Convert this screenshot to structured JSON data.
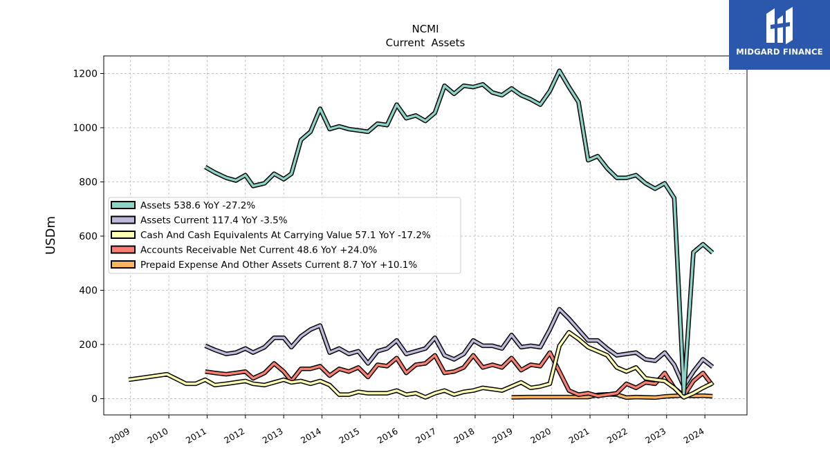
{
  "brand": {
    "name": "MIDGARD FINANCE",
    "logo_icon": "midgard-monogram-icon",
    "color": "#2b58ad"
  },
  "chart_data": {
    "type": "line",
    "title": "NCMI",
    "subtitle": "Current  Assets",
    "xlabel": "",
    "ylabel": "USDm",
    "xlim": [
      2008.3,
      2025.1
    ],
    "ylim": [
      -60,
      1265
    ],
    "yticks": [
      0,
      200,
      400,
      600,
      800,
      1000,
      1200
    ],
    "xticks": [
      "2009",
      "2010",
      "2011",
      "2012",
      "2013",
      "2014",
      "2015",
      "2016",
      "2017",
      "2018",
      "2019",
      "2020",
      "2021",
      "2022",
      "2023",
      "2024"
    ],
    "grid": true,
    "legend": "center-left",
    "series": [
      {
        "name": "Assets  538.6 YoY -27.2%",
        "color": "#8dd3c7",
        "x": [
          2010.95,
          2011.2,
          2011.5,
          2011.75,
          2012.0,
          2012.2,
          2012.5,
          2012.75,
          2013.0,
          2013.2,
          2013.45,
          2013.7,
          2013.95,
          2014.2,
          2014.45,
          2014.7,
          2014.95,
          2015.2,
          2015.45,
          2015.7,
          2015.95,
          2016.2,
          2016.45,
          2016.7,
          2016.95,
          2017.2,
          2017.45,
          2017.7,
          2017.95,
          2018.2,
          2018.45,
          2018.7,
          2018.95,
          2019.2,
          2019.45,
          2019.7,
          2019.95,
          2020.2,
          2020.45,
          2020.7,
          2020.95,
          2021.2,
          2021.45,
          2021.7,
          2021.95,
          2022.2,
          2022.45,
          2022.7,
          2022.95,
          2023.2,
          2023.45,
          2023.7,
          2023.95,
          2024.2
        ],
        "values": [
          855,
          835,
          815,
          805,
          825,
          785,
          795,
          830,
          810,
          830,
          955,
          985,
          1070,
          995,
          1005,
          995,
          990,
          985,
          1015,
          1010,
          1085,
          1035,
          1045,
          1025,
          1055,
          1155,
          1125,
          1155,
          1150,
          1160,
          1130,
          1120,
          1145,
          1120,
          1105,
          1085,
          1135,
          1210,
          1150,
          1095,
          880,
          895,
          850,
          815,
          815,
          825,
          795,
          775,
          795,
          740,
          20,
          540,
          570,
          538.6
        ]
      },
      {
        "name": "Assets Current  117.4 YoY -3.5%",
        "color": "#bebada",
        "x": [
          2010.95,
          2011.2,
          2011.5,
          2011.75,
          2012.0,
          2012.2,
          2012.5,
          2012.75,
          2013.0,
          2013.2,
          2013.45,
          2013.7,
          2013.95,
          2014.2,
          2014.45,
          2014.7,
          2014.95,
          2015.2,
          2015.45,
          2015.7,
          2015.95,
          2016.2,
          2016.45,
          2016.7,
          2016.95,
          2017.2,
          2017.45,
          2017.7,
          2017.95,
          2018.2,
          2018.45,
          2018.7,
          2018.95,
          2019.2,
          2019.45,
          2019.7,
          2019.95,
          2020.2,
          2020.45,
          2020.7,
          2020.95,
          2021.2,
          2021.45,
          2021.7,
          2021.95,
          2022.2,
          2022.45,
          2022.7,
          2022.95,
          2023.2,
          2023.45,
          2023.7,
          2023.95,
          2024.2
        ],
        "values": [
          195,
          180,
          165,
          170,
          185,
          170,
          190,
          225,
          225,
          190,
          230,
          255,
          270,
          170,
          185,
          165,
          175,
          130,
          175,
          185,
          215,
          165,
          175,
          185,
          225,
          160,
          145,
          165,
          215,
          195,
          195,
          185,
          235,
          190,
          195,
          190,
          255,
          330,
          295,
          255,
          215,
          215,
          185,
          160,
          165,
          170,
          145,
          140,
          170,
          125,
          45,
          100,
          145,
          117.4
        ]
      },
      {
        "name": "Cash And Cash Equivalents At Carrying Value  57.1 YoY -17.2%",
        "color": "#ffffb3",
        "x": [
          2008.95,
          2009.45,
          2009.95,
          2010.45,
          2010.7,
          2010.95,
          2011.2,
          2011.5,
          2011.75,
          2012.0,
          2012.2,
          2012.5,
          2012.75,
          2013.0,
          2013.2,
          2013.45,
          2013.7,
          2013.95,
          2014.2,
          2014.45,
          2014.7,
          2014.95,
          2015.2,
          2015.45,
          2015.7,
          2015.95,
          2016.2,
          2016.45,
          2016.7,
          2016.95,
          2017.2,
          2017.45,
          2017.7,
          2017.95,
          2018.2,
          2018.45,
          2018.7,
          2018.95,
          2019.2,
          2019.45,
          2019.7,
          2019.95,
          2020.2,
          2020.45,
          2020.7,
          2020.95,
          2021.2,
          2021.45,
          2021.7,
          2021.95,
          2022.2,
          2022.45,
          2022.7,
          2022.95,
          2023.2,
          2023.45,
          2023.7,
          2023.95,
          2024.2
        ],
        "values": [
          70,
          80,
          90,
          55,
          55,
          70,
          50,
          55,
          60,
          65,
          55,
          50,
          60,
          70,
          60,
          65,
          55,
          65,
          50,
          15,
          15,
          25,
          20,
          20,
          20,
          30,
          15,
          20,
          5,
          20,
          30,
          15,
          25,
          30,
          40,
          35,
          30,
          45,
          60,
          40,
          45,
          55,
          195,
          245,
          220,
          190,
          175,
          160,
          115,
          100,
          115,
          75,
          70,
          65,
          40,
          5,
          20,
          40,
          57.1
        ]
      },
      {
        "name": "Accounts Receivable Net Current  48.6 YoY +24.0%",
        "color": "#fb8072",
        "x": [
          2010.95,
          2011.2,
          2011.5,
          2011.75,
          2012.0,
          2012.2,
          2012.5,
          2012.75,
          2013.0,
          2013.2,
          2013.45,
          2013.7,
          2013.95,
          2014.2,
          2014.45,
          2014.7,
          2014.95,
          2015.2,
          2015.45,
          2015.7,
          2015.95,
          2016.2,
          2016.45,
          2016.7,
          2016.95,
          2017.2,
          2017.45,
          2017.7,
          2017.95,
          2018.2,
          2018.45,
          2018.7,
          2018.95,
          2019.2,
          2019.45,
          2019.7,
          2019.95,
          2020.2,
          2020.45,
          2020.7,
          2020.95,
          2021.2,
          2021.45,
          2021.7,
          2021.95,
          2022.2,
          2022.45,
          2022.7,
          2022.95,
          2023.2,
          2023.45,
          2023.7,
          2023.95,
          2024.2
        ],
        "values": [
          100,
          95,
          90,
          95,
          100,
          75,
          95,
          130,
          100,
          65,
          110,
          110,
          120,
          85,
          110,
          100,
          115,
          80,
          125,
          120,
          150,
          95,
          125,
          130,
          160,
          95,
          100,
          115,
          160,
          115,
          125,
          115,
          150,
          105,
          125,
          120,
          170,
          100,
          30,
          15,
          20,
          10,
          15,
          20,
          55,
          40,
          60,
          55,
          95,
          40,
          10,
          65,
          95,
          48.6
        ]
      },
      {
        "name": "Prepaid Expense And Other Assets Current  8.7 YoY +10.1%",
        "color": "#fdb462",
        "x": [
          2018.95,
          2019.45,
          2019.95,
          2020.45,
          2020.95,
          2021.2,
          2021.45,
          2021.7,
          2021.95,
          2022.2,
          2022.45,
          2022.7,
          2022.95,
          2023.2,
          2023.45,
          2023.7,
          2023.95,
          2024.2
        ],
        "values": [
          5,
          6,
          6,
          6,
          6,
          14,
          16,
          15,
          4,
          6,
          5,
          4,
          8,
          10,
          12,
          10,
          11,
          8.7
        ]
      }
    ]
  }
}
